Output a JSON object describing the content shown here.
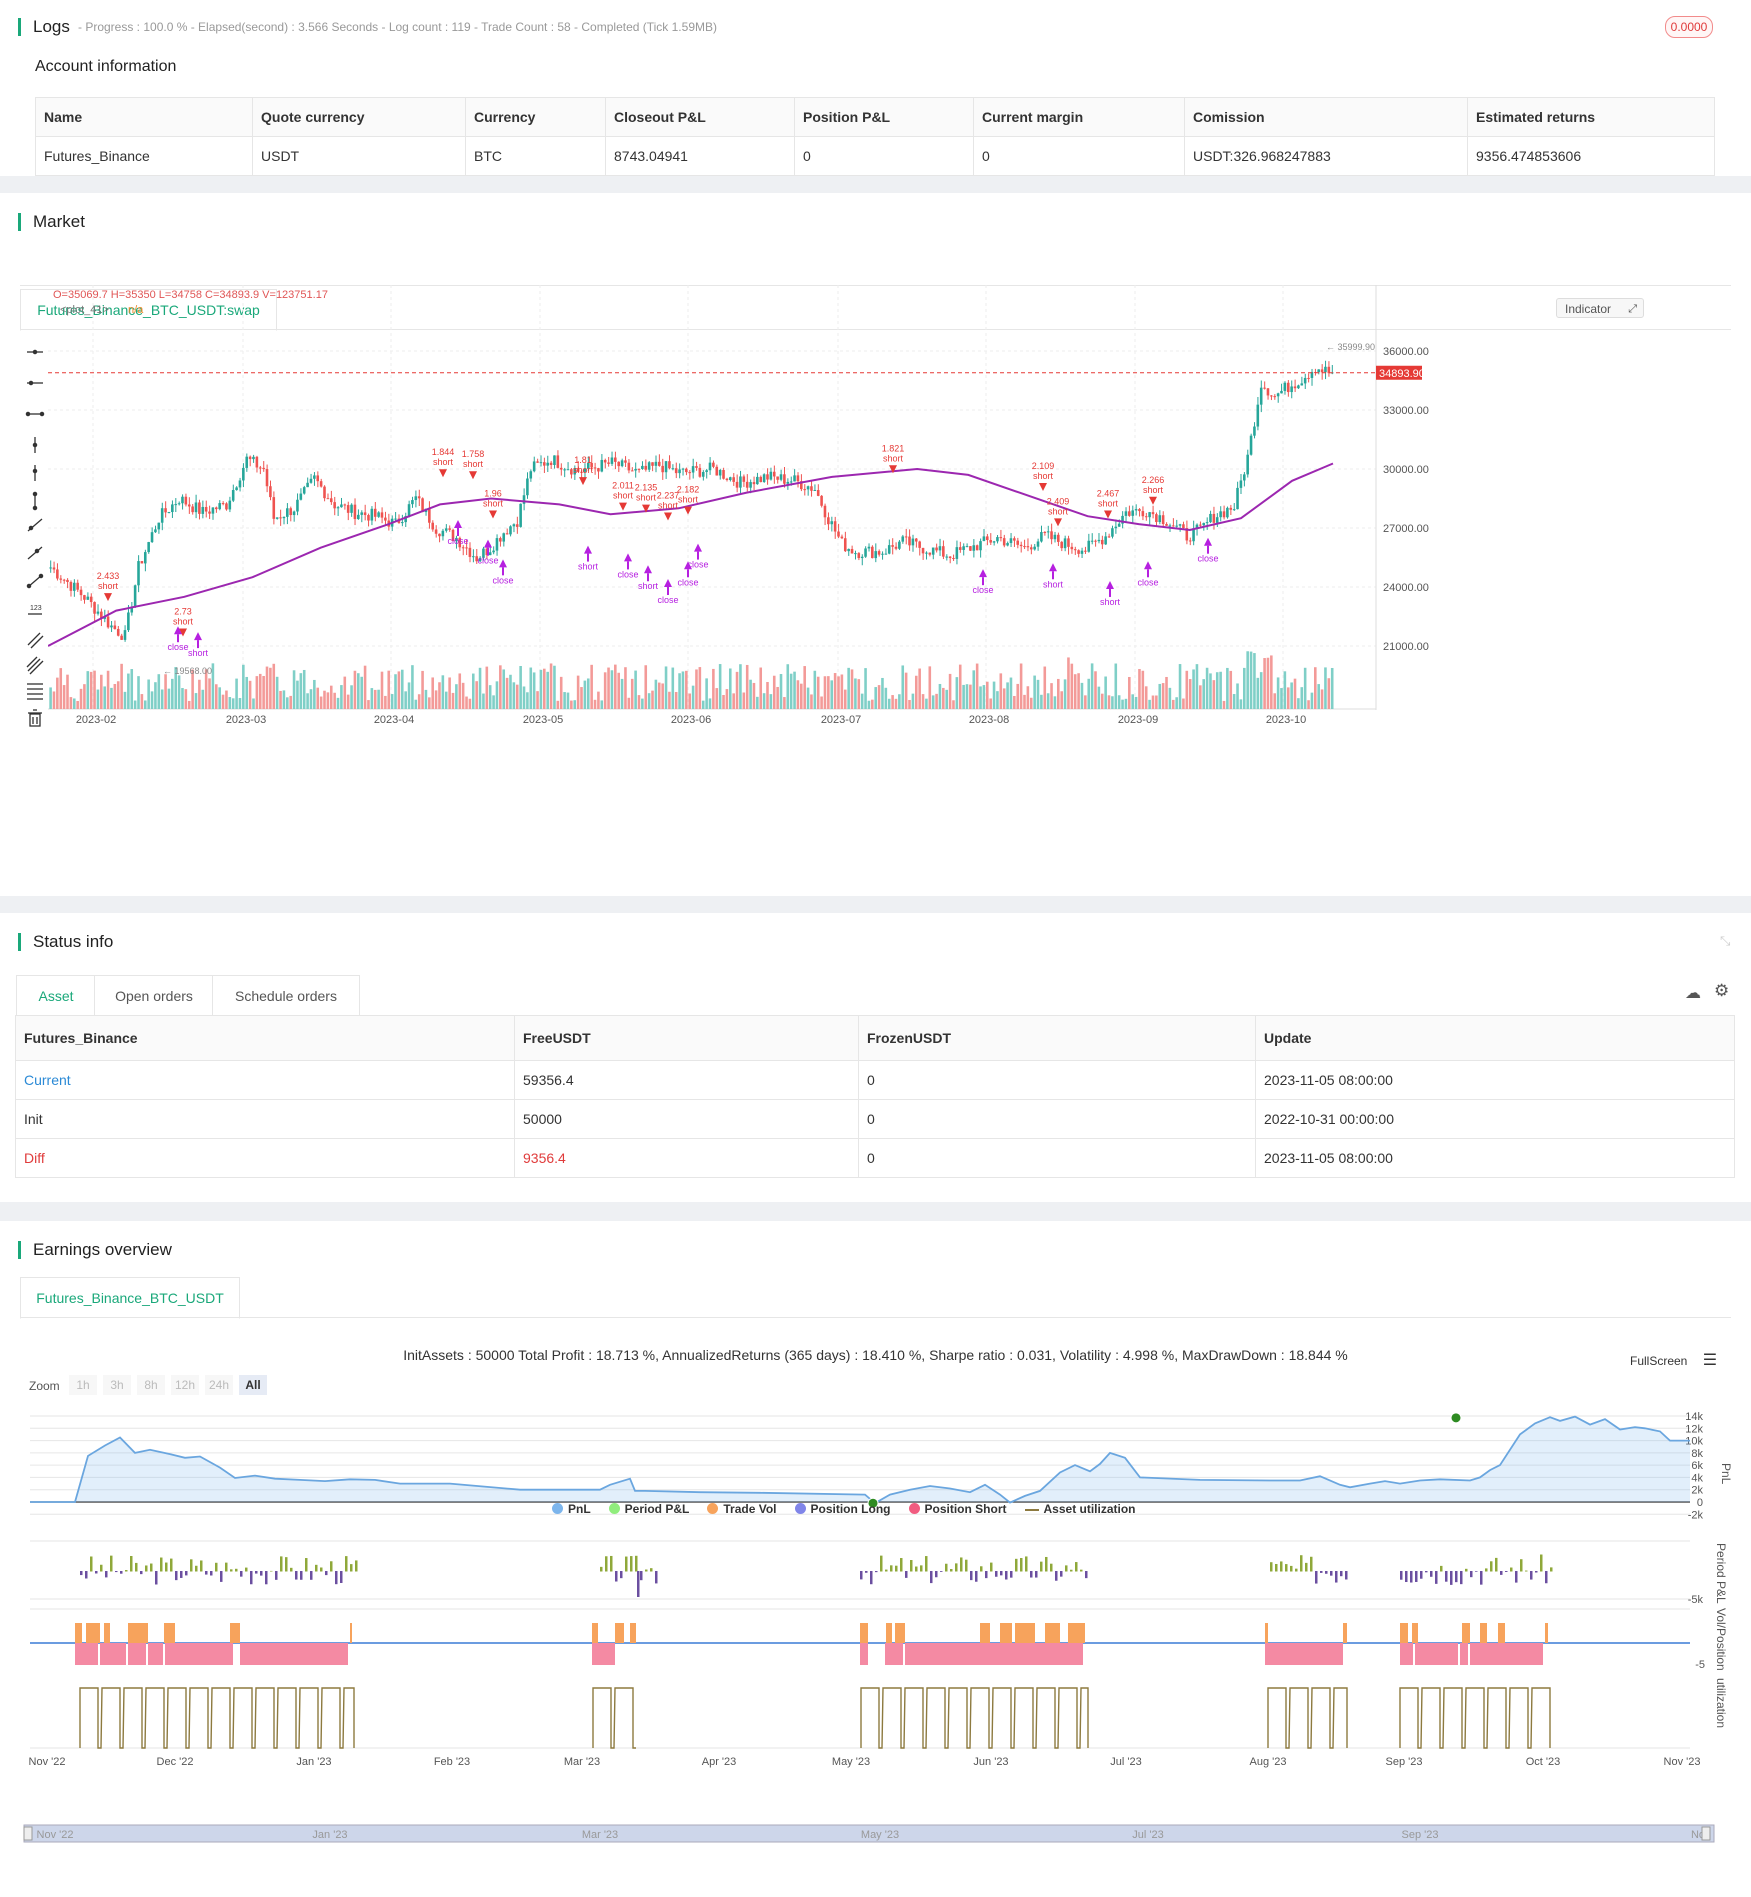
{
  "logs": {
    "title": "Logs",
    "status": "- Progress : 100.0 % - Elapsed(second) : 3.566 Seconds - Log count : 119 - Trade Count : 58 - Completed (Tick 1.59MB)",
    "badge": "0.0000"
  },
  "account": {
    "title": "Account information",
    "headers": [
      "Name",
      "Quote currency",
      "Currency",
      "Closeout P&L",
      "Position P&L",
      "Current margin",
      "Comission",
      "Estimated returns"
    ],
    "row": [
      "Futures_Binance",
      "USDT",
      "BTC",
      "8743.04941",
      "0",
      "0",
      "USDT:326.968247883",
      "9356.474853606"
    ]
  },
  "market": {
    "title": "Market",
    "tab": "Futures_Binance_BTC_USDT:swap",
    "ohlc": "O=35069.7 H=35350 L=34758 C=34893.9 V=123751.17",
    "plot_label": "<plot_41>",
    "plot_value": "n/a",
    "indicator_btn": "Indicator",
    "price_labels": [
      "36000.00",
      "33000.00",
      "30000.00",
      "27000.00",
      "24000.00",
      "21000.00"
    ],
    "current_price": "34893.90",
    "high_marker": "35999.90",
    "low_marker": "19568.00",
    "x_labels": [
      "2023-02",
      "2023-03",
      "2023-04",
      "2023-05",
      "2023-06",
      "2023-07",
      "2023-08",
      "2023-09",
      "2023-10"
    ],
    "tool_icons": [
      "horizontal-line-icon",
      "horizontal-ray-icon",
      "horizontal-segment-icon",
      "vertical-line-icon",
      "vertical-ray-icon",
      "vertical-segment-icon",
      "trend-line-icon",
      "ray-icon",
      "segment-icon",
      "price-label-icon",
      "parallel-channel-icon",
      "parallel-lines-icon",
      "fibonacci-icon",
      "trash-icon"
    ],
    "annotations": [
      {
        "text": "2.433",
        "kind": "value"
      },
      {
        "text": "short",
        "kind": "signal"
      },
      {
        "text": "1.844",
        "kind": "value"
      },
      {
        "text": "1.758",
        "kind": "value"
      },
      {
        "text": "1.96",
        "kind": "value"
      },
      {
        "text": "1.81",
        "kind": "value"
      },
      {
        "text": "2.011",
        "kind": "value"
      },
      {
        "text": "2.135",
        "kind": "value"
      },
      {
        "text": "2.237",
        "kind": "value"
      },
      {
        "text": "2.182",
        "kind": "value"
      },
      {
        "text": "1.821",
        "kind": "value"
      },
      {
        "text": "2.109",
        "kind": "value"
      },
      {
        "text": "2.467",
        "kind": "value"
      },
      {
        "text": "2.409",
        "kind": "value"
      },
      {
        "text": "2.266",
        "kind": "value"
      },
      {
        "text": "2.73",
        "kind": "value"
      },
      {
        "text": "close",
        "kind": "signal"
      }
    ]
  },
  "status": {
    "title": "Status info",
    "tabs": [
      "Asset",
      "Open orders",
      "Schedule orders"
    ],
    "headers": [
      "Futures_Binance",
      "FreeUSDT",
      "FrozenUSDT",
      "Update"
    ],
    "rows": [
      [
        "Current",
        "59356.4",
        "0",
        "2023-11-05 08:00:00"
      ],
      [
        "Init",
        "50000",
        "0",
        "2022-10-31 00:00:00"
      ],
      [
        "Diff",
        "9356.4",
        "0",
        "2023-11-05 08:00:00"
      ]
    ]
  },
  "earnings": {
    "title": "Earnings overview",
    "tab": "Futures_Binance_BTC_USDT",
    "summary": "InitAssets : 50000 Total Profit : 18.713 %, AnnualizedReturns (365 days) : 18.410 %, Sharpe ratio : 0.031, Volatility : 4.998 %, MaxDrawDown : 18.844 %",
    "fullscreen": "FullScreen",
    "zoom_label": "Zoom",
    "zoom_options": [
      "1h",
      "3h",
      "8h",
      "12h",
      "24h",
      "All"
    ],
    "pnl_axis": [
      "14k",
      "12k",
      "10k",
      "8k",
      "6k",
      "4k",
      "2k",
      "0",
      "-2k"
    ],
    "pnl_title": "PnL",
    "period_axis": "-5k",
    "period_title": "Period P&L",
    "vol_axis": "-5",
    "vol_title": "Vol/Position",
    "util_title": "utilization",
    "x_labels": [
      "Nov '22",
      "Dec '22",
      "Jan '23",
      "Feb '23",
      "Mar '23",
      "Apr '23",
      "May '23",
      "Jun '23",
      "Jul '23",
      "Aug '23",
      "Sep '23",
      "Oct '23",
      "Nov '23"
    ],
    "nav_labels": [
      "Nov '22",
      "Jan '23",
      "Mar '23",
      "May '23",
      "Jul '23",
      "Sep '23",
      "No"
    ],
    "legend": [
      {
        "label": "PnL",
        "color": "#7cb5ec"
      },
      {
        "label": "Period P&L",
        "color": "#90ed7d"
      },
      {
        "label": "Trade Vol",
        "color": "#f7a35c"
      },
      {
        "label": "Position Long",
        "color": "#8085e9"
      },
      {
        "label": "Position Short",
        "color": "#f15c80"
      },
      {
        "label": "Asset utilization",
        "color": "#8d7a3f"
      }
    ]
  }
}
